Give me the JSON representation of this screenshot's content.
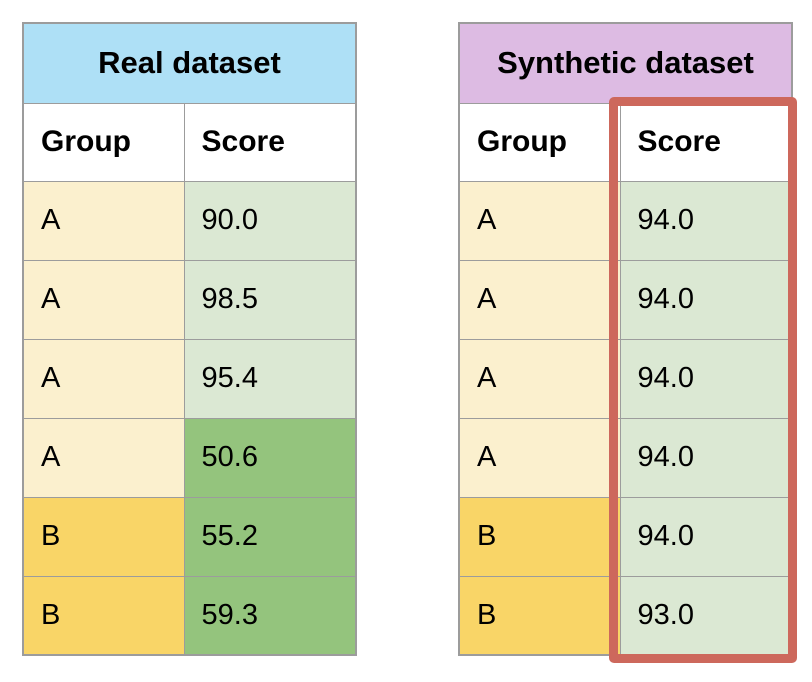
{
  "page": {
    "background": "#ffffff"
  },
  "colors": {
    "real_header": "#aee0f6",
    "synthetic_header": "#ddbbe3",
    "group_a": "#fbf0ce",
    "group_b": "#f9d567",
    "score_light": "#dbe8d3",
    "score_dark": "#94c47d",
    "highlight_red": "#cd685c",
    "cell_border": "#9c9c9c",
    "text": "#000000"
  },
  "tables": [
    {
      "id": "real",
      "title": "Real dataset",
      "title_color": "real_header",
      "columns": [
        "Group",
        "Score"
      ],
      "rows": [
        {
          "group": "A",
          "score": "90.0",
          "group_color": "group_a",
          "score_color": "score_light"
        },
        {
          "group": "A",
          "score": "98.5",
          "group_color": "group_a",
          "score_color": "score_light"
        },
        {
          "group": "A",
          "score": "95.4",
          "group_color": "group_a",
          "score_color": "score_light"
        },
        {
          "group": "A",
          "score": "50.6",
          "group_color": "group_a",
          "score_color": "score_dark"
        },
        {
          "group": "B",
          "score": "55.2",
          "group_color": "group_b",
          "score_color": "score_dark"
        },
        {
          "group": "B",
          "score": "59.3",
          "group_color": "group_b",
          "score_color": "score_dark"
        }
      ]
    },
    {
      "id": "synthetic",
      "title": "Synthetic dataset",
      "title_color": "synthetic_header",
      "columns": [
        "Group",
        "Score"
      ],
      "highlighted_column": "Score",
      "rows": [
        {
          "group": "A",
          "score": "94.0",
          "group_color": "group_a",
          "score_color": "score_light"
        },
        {
          "group": "A",
          "score": "94.0",
          "group_color": "group_a",
          "score_color": "score_light"
        },
        {
          "group": "A",
          "score": "94.0",
          "group_color": "group_a",
          "score_color": "score_light"
        },
        {
          "group": "A",
          "score": "94.0",
          "group_color": "group_a",
          "score_color": "score_light"
        },
        {
          "group": "B",
          "score": "94.0",
          "group_color": "group_b",
          "score_color": "score_light"
        },
        {
          "group": "B",
          "score": "93.0",
          "group_color": "group_b",
          "score_color": "score_light"
        }
      ]
    }
  ]
}
